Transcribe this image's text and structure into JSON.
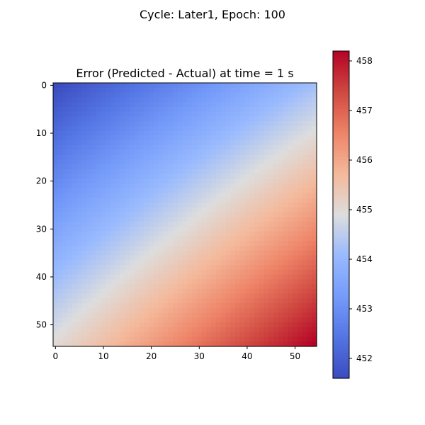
{
  "figure": {
    "suptitle": "Cycle: Later1, Epoch: 100"
  },
  "chart_data": {
    "type": "heatmap",
    "title": "Error (Predicted - Actual) at time = 1 s",
    "xlabel": "",
    "ylabel": "",
    "grid": false,
    "rows": 55,
    "cols": 55,
    "x_ticks": [
      0,
      10,
      20,
      30,
      40,
      50
    ],
    "y_ticks": [
      0,
      10,
      20,
      30,
      40,
      50
    ],
    "colormap": "coolwarm",
    "colorbar": {
      "vmin": 451.6,
      "vmax": 458.2,
      "ticks": [
        452,
        453,
        454,
        455,
        456,
        457,
        458
      ]
    },
    "corner_values": {
      "top_left": 451.6,
      "top_right": 454.2,
      "bottom_left": 455.0,
      "bottom_right": 458.2
    },
    "colors": {
      "low": "#3b4cc0",
      "mid": "#dddddd",
      "high": "#b40426"
    }
  }
}
